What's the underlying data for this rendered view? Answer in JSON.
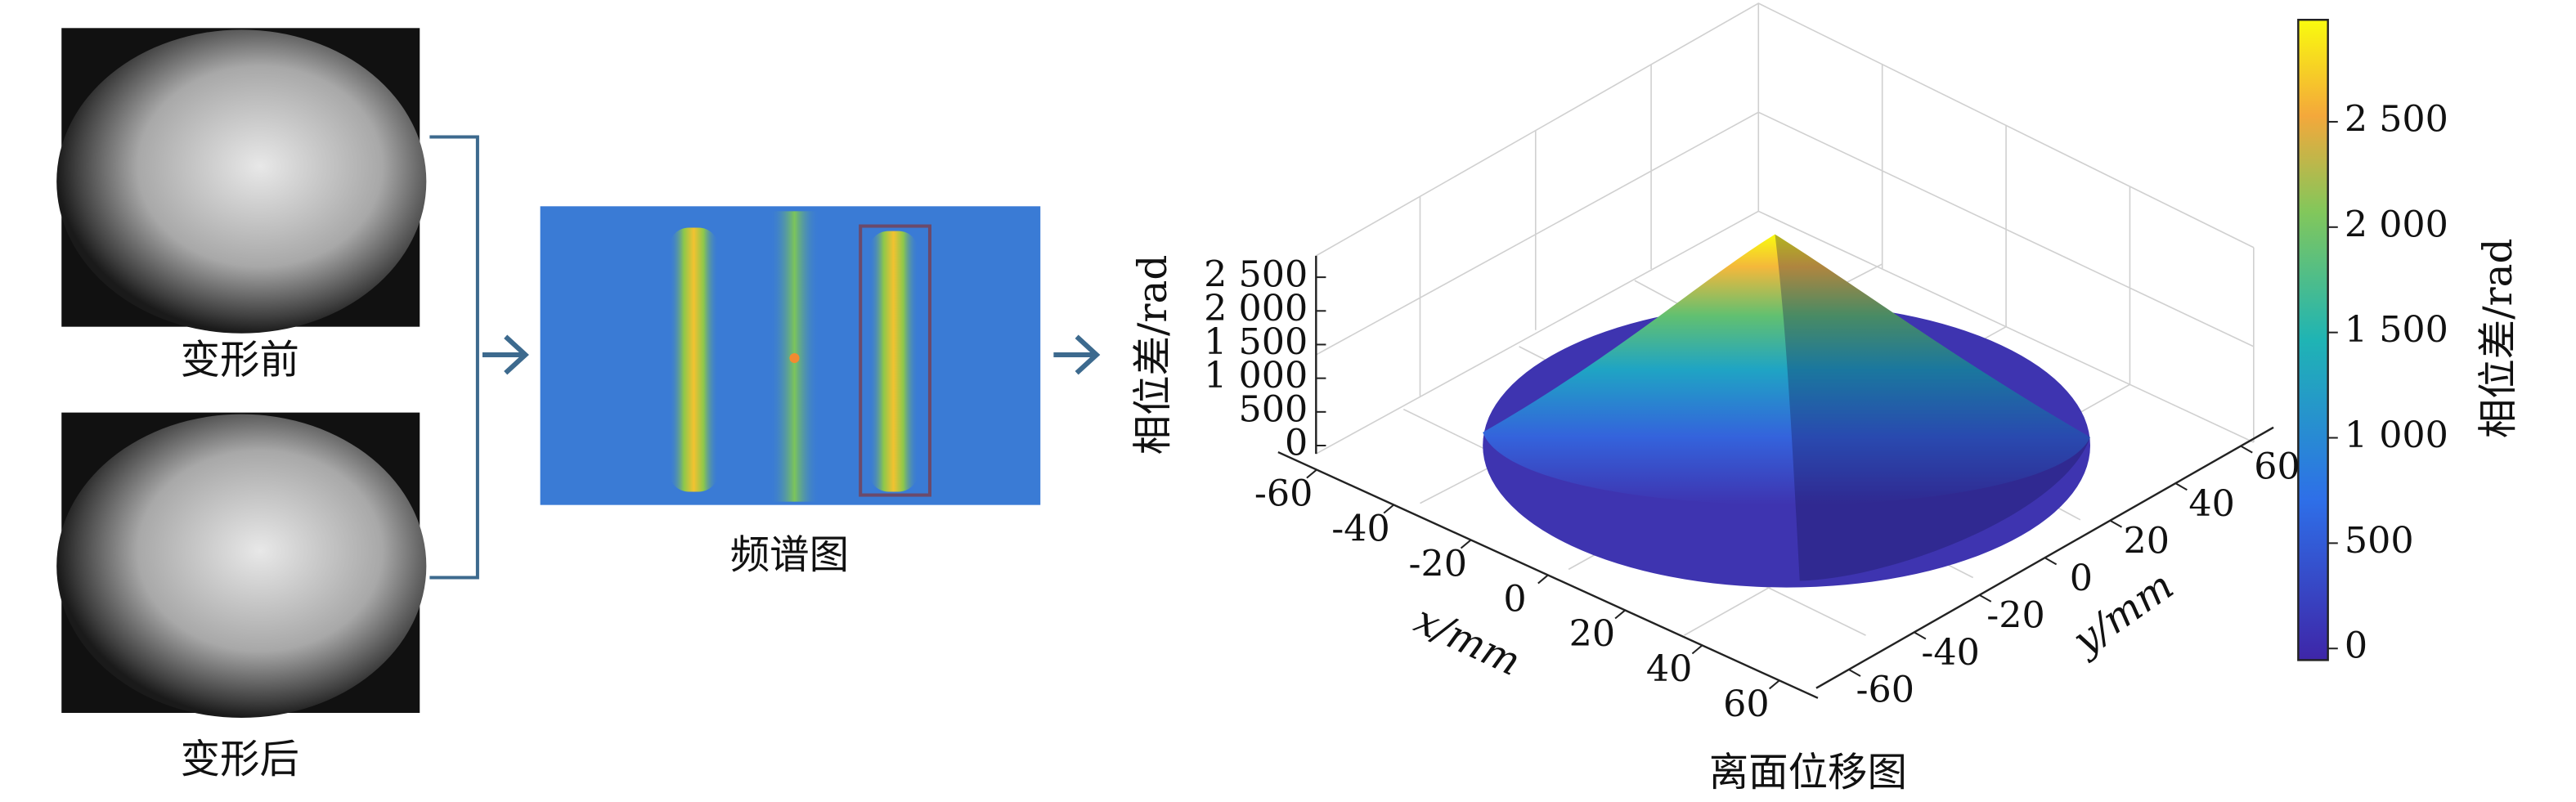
{
  "panels": {
    "before": {
      "label": "变形前"
    },
    "after": {
      "label": "变形后"
    },
    "spectrum": {
      "label": "频谱图"
    }
  },
  "chart_data": {
    "type": "surface3d",
    "title": "离面位移图",
    "xlabel": "x/mm",
    "ylabel": "y/mm",
    "zlabel": "相位差/rad",
    "xlim": [
      -70,
      70
    ],
    "xticks": [
      -60,
      -40,
      -20,
      0,
      20,
      40,
      60
    ],
    "ylim": [
      -70,
      70
    ],
    "yticks": [
      -60,
      -40,
      -20,
      0,
      20,
      40,
      60
    ],
    "zlim": [
      0,
      2900
    ],
    "zticks": [
      0,
      500,
      {
        "value": 1000,
        "label": "1 000"
      },
      {
        "value": 1500,
        "label": "1 500"
      },
      {
        "value": 2000,
        "label": "2 000"
      },
      {
        "value": 2500,
        "label": "2 500"
      }
    ],
    "colorbar": {
      "label": "相位差/rad",
      "lim": [
        -55,
        2984
      ],
      "ticks": [
        0,
        500,
        {
          "value": 1000,
          "label": "1 000"
        },
        {
          "value": 1500,
          "label": "1 500"
        },
        {
          "value": 2000,
          "label": "2 000"
        },
        {
          "value": 2500,
          "label": "2 500"
        }
      ]
    }
  }
}
